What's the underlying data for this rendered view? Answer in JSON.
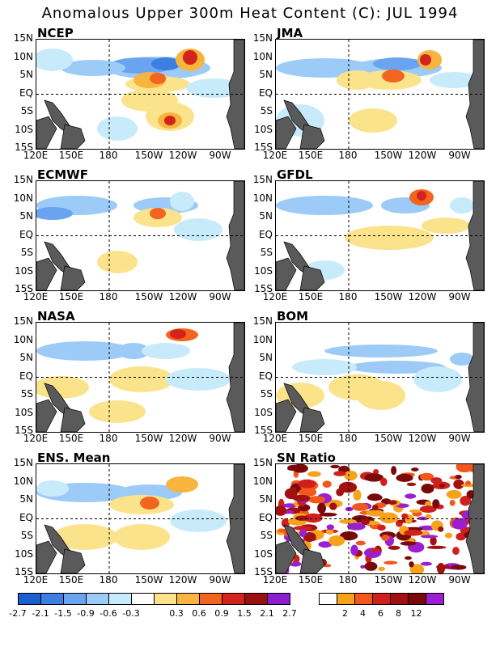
{
  "title": "Anomalous Upper 300m Heat Content (C): JUL 1994",
  "panels": [
    {
      "label": "NCEP"
    },
    {
      "label": "JMA"
    },
    {
      "label": "ECMWF"
    },
    {
      "label": "GFDL"
    },
    {
      "label": "NASA"
    },
    {
      "label": "BOM"
    },
    {
      "label": "ENS. Mean"
    },
    {
      "label": "SN Ratio"
    }
  ],
  "axes": {
    "lat_ticks": [
      "15N",
      "10N",
      "5N",
      "EQ",
      "5S",
      "10S",
      "15S"
    ],
    "lon_ticks": [
      "120E",
      "150E",
      "180",
      "150W",
      "120W",
      "90W"
    ],
    "lat_range": [
      -15,
      15
    ],
    "lon_range": [
      "120E",
      "75W"
    ]
  },
  "colorbars": {
    "anomaly": {
      "colors": [
        "#1a5fd0",
        "#3c7fe0",
        "#6aa3ef",
        "#9ccbf7",
        "#c8ebfb",
        "#ffffff",
        "#fbe38b",
        "#f7b43e",
        "#f2651e",
        "#d2231c",
        "#9a0f0f",
        "#8a1ed0"
      ],
      "labels": [
        "-2.7",
        "-2.1",
        "-1.5",
        "-0.9",
        "-0.6",
        "-0.3",
        "0.3",
        "0.6",
        "0.9",
        "1.5",
        "2.1",
        "2.7"
      ]
    },
    "sn_ratio": {
      "colors": [
        "#ffffff",
        "#f7a21b",
        "#f2581b",
        "#d0201c",
        "#a2100f",
        "#7a0a0a",
        "#9b1fd0"
      ],
      "labels": [
        "2",
        "4",
        "6",
        "8",
        "12"
      ]
    }
  },
  "map_colors": {
    "land": "#5a5a5a",
    "gridline": "#000000"
  }
}
